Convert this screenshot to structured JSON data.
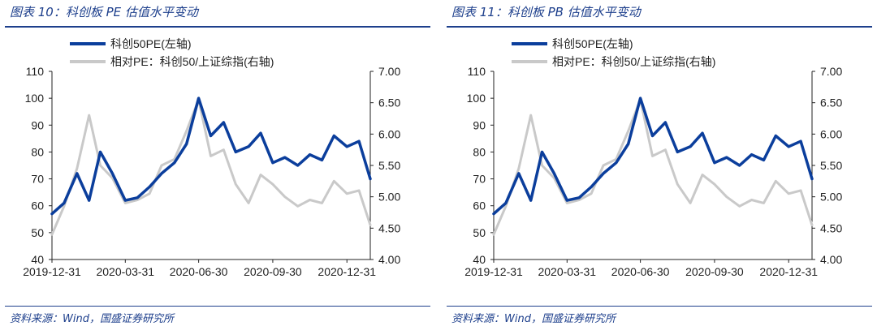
{
  "colors": {
    "primary": "#0b3e9c",
    "secondary": "#c9c9c9",
    "text": "#1d3f8c"
  },
  "source_text": "资料来源：Wind，国盛证券研究所",
  "x_dates": [
    "2019-12-31",
    "2020-01-15",
    "2020-01-31",
    "2020-02-15",
    "2020-02-29",
    "2020-03-15",
    "2020-03-31",
    "2020-04-15",
    "2020-04-30",
    "2020-05-15",
    "2020-05-31",
    "2020-06-15",
    "2020-06-30",
    "2020-07-15",
    "2020-07-31",
    "2020-08-15",
    "2020-08-31",
    "2020-09-15",
    "2020-09-30",
    "2020-10-15",
    "2020-10-31",
    "2020-11-15",
    "2020-11-30",
    "2020-12-15",
    "2020-12-31",
    "2021-01-15",
    "2021-01-29"
  ],
  "chart_data": [
    {
      "type": "line",
      "caption": "图表 10：科创板 PE 估值水平变动",
      "x_tick_labels": [
        "2019-12-31",
        "2020-03-31",
        "2020-06-30",
        "2020-09-30",
        "2020-12-31"
      ],
      "y_left": {
        "ticks": [
          "40",
          "50",
          "60",
          "70",
          "80",
          "90",
          "100",
          "110"
        ],
        "ylim": [
          40,
          110
        ]
      },
      "y_right": {
        "ticks": [
          "4.00",
          "4.50",
          "5.00",
          "5.50",
          "6.00",
          "6.50",
          "7.00"
        ],
        "ylim": [
          4.0,
          7.0
        ]
      },
      "series": [
        {
          "name": "科创50PE(左轴)",
          "axis": "left",
          "values": [
            57,
            61,
            72,
            62,
            80,
            72,
            62,
            63,
            67,
            72,
            76,
            83,
            100,
            86,
            91,
            80,
            82,
            87,
            76,
            78,
            75,
            79,
            77,
            86,
            82,
            84,
            70
          ]
        },
        {
          "name": "相对PE：科创50/上证综指(右轴)",
          "axis": "right",
          "values": [
            4.4,
            4.85,
            5.45,
            6.3,
            5.5,
            5.3,
            4.9,
            4.95,
            5.05,
            5.5,
            5.6,
            6.05,
            6.55,
            5.65,
            5.75,
            5.2,
            4.9,
            5.35,
            5.2,
            5.0,
            4.85,
            4.95,
            4.9,
            5.25,
            5.05,
            5.1,
            4.55
          ]
        }
      ]
    },
    {
      "type": "line",
      "caption": "图表 11：科创板 PB 估值水平变动",
      "x_tick_labels": [
        "2019-12-31",
        "2020-03-31",
        "2020-06-30",
        "2020-09-30",
        "2020-12-31"
      ],
      "y_left": {
        "ticks": [
          "40",
          "50",
          "60",
          "70",
          "80",
          "90",
          "100",
          "110"
        ],
        "ylim": [
          40,
          110
        ]
      },
      "y_right": {
        "ticks": [
          "4.00",
          "4.50",
          "5.00",
          "5.50",
          "6.00",
          "6.50",
          "7.00"
        ],
        "ylim": [
          4.0,
          7.0
        ]
      },
      "series": [
        {
          "name": "科创50PE(左轴)",
          "axis": "left",
          "values": [
            57,
            61,
            72,
            62,
            80,
            72,
            62,
            63,
            67,
            72,
            76,
            83,
            100,
            86,
            91,
            80,
            82,
            87,
            76,
            78,
            75,
            79,
            77,
            86,
            82,
            84,
            70
          ]
        },
        {
          "name": "相对PE：科创50/上证综指(右轴)",
          "axis": "right",
          "values": [
            4.4,
            4.85,
            5.45,
            6.3,
            5.5,
            5.3,
            4.9,
            4.95,
            5.05,
            5.5,
            5.6,
            6.05,
            6.55,
            5.65,
            5.75,
            5.2,
            4.9,
            5.35,
            5.2,
            5.0,
            4.85,
            4.95,
            4.9,
            5.25,
            5.05,
            5.1,
            4.55
          ]
        }
      ]
    }
  ]
}
